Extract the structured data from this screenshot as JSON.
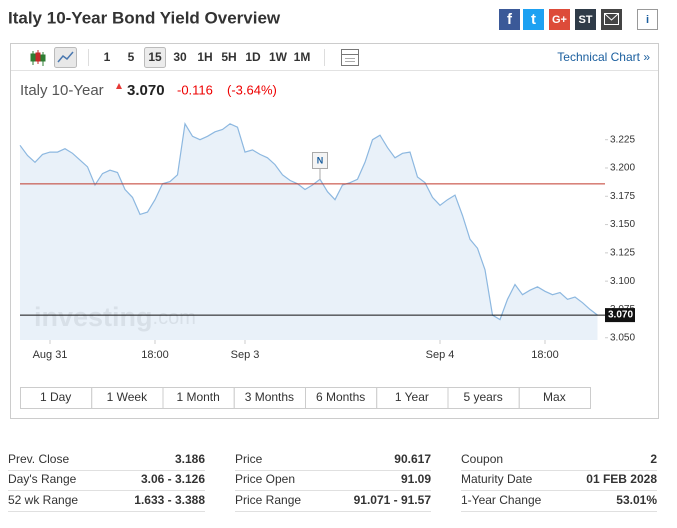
{
  "header": {
    "title": "Italy 10-Year Bond Yield Overview",
    "share_buttons": [
      "f",
      "t",
      "G+",
      "ST",
      "i"
    ]
  },
  "toolbar": {
    "intervals": [
      "1",
      "5",
      "15",
      "30",
      "1H",
      "5H",
      "1D",
      "1W",
      "1M"
    ],
    "selected_index": 2,
    "link": "Technical Chart »"
  },
  "quote": {
    "name": "Italy 10-Year",
    "price": {
      "value": 3.07,
      "label": "3.070"
    },
    "change": "-0.116",
    "change_pct": "(-3.64%)"
  },
  "chart_data": {
    "type": "area",
    "color": "#8db8e0",
    "fill": "#e4eef8",
    "watermark": [
      "investing",
      ".com"
    ],
    "annotation": "N",
    "categories": [
      null,
      null,
      null,
      null,
      "Aug 31",
      null,
      null,
      null,
      null,
      null,
      null,
      null,
      null,
      null,
      null,
      null,
      null,
      null,
      "18:00",
      null,
      null,
      null,
      null,
      null,
      null,
      null,
      null,
      null,
      null,
      null,
      "Sep 3",
      null,
      null,
      null,
      null,
      null,
      null,
      null,
      null,
      null,
      null,
      null,
      null,
      null,
      null,
      null,
      null,
      null,
      null,
      null,
      null,
      null,
      null,
      null,
      null,
      null,
      "Sep 4",
      null,
      null,
      null,
      null,
      null,
      null,
      null,
      null,
      null,
      null,
      null,
      null,
      null,
      "18:00",
      null,
      null,
      null,
      null,
      null,
      null,
      null
    ],
    "values": [
      3.22,
      3.211,
      3.205,
      3.212,
      3.214,
      3.214,
      3.217,
      3.213,
      3.207,
      3.201,
      3.185,
      3.195,
      3.198,
      3.196,
      3.181,
      3.174,
      3.159,
      3.161,
      3.172,
      3.186,
      3.188,
      3.194,
      3.239,
      3.228,
      3.225,
      3.228,
      3.232,
      3.234,
      3.239,
      3.236,
      3.214,
      3.216,
      3.212,
      3.209,
      3.203,
      3.194,
      3.189,
      3.186,
      3.181,
      3.185,
      3.19,
      3.179,
      3.172,
      3.185,
      3.187,
      3.19,
      3.205,
      3.225,
      3.229,
      3.218,
      3.209,
      3.213,
      3.214,
      3.192,
      3.187,
      3.174,
      3.167,
      3.172,
      3.176,
      3.158,
      3.137,
      3.129,
      3.11,
      3.07,
      3.066,
      3.084,
      3.097,
      3.088,
      3.092,
      3.095,
      3.091,
      3.088,
      3.09,
      3.084,
      3.086,
      3.081,
      3.075,
      3.07
    ],
    "ylim": [
      3.048,
      3.253
    ],
    "yticks": [
      {
        "value": 3.05,
        "label": "3.050"
      },
      {
        "value": 3.075,
        "label": "3.075"
      },
      {
        "value": 3.1,
        "label": "3.100"
      },
      {
        "value": 3.125,
        "label": "3.125"
      },
      {
        "value": 3.15,
        "label": "3.150"
      },
      {
        "value": 3.175,
        "label": "3.175"
      },
      {
        "value": 3.2,
        "label": "3.200"
      },
      {
        "value": 3.225,
        "label": "3.225"
      }
    ],
    "ranges": [
      "1 Day",
      "1 Week",
      "1 Month",
      "3 Months",
      "6 Months",
      "1 Year",
      "5 years",
      "Max"
    ]
  },
  "stats": {
    "rows": [
      [
        {
          "label": "Prev. Close",
          "value": 3.186
        },
        {
          "label": "Price",
          "value": "90.617"
        },
        {
          "label": "Coupon",
          "value": "2"
        }
      ],
      [
        {
          "label": "Day's Range",
          "value": "3.06 - 3.126"
        },
        {
          "label": "Price Open",
          "value": "91.09"
        },
        {
          "label": "Maturity Date",
          "value": "01 FEB 2028"
        }
      ],
      [
        {
          "label": "52 wk Range",
          "value": "1.633 - 3.388"
        },
        {
          "label": "Price Range",
          "value": "91.071 - 91.57"
        },
        {
          "label": "1-Year Change",
          "value": "53.01%"
        }
      ]
    ]
  }
}
